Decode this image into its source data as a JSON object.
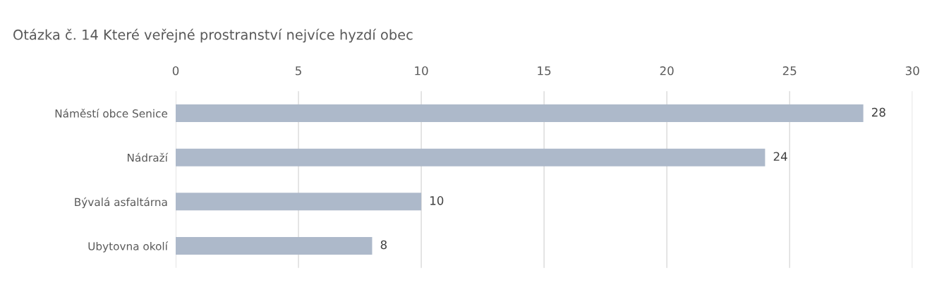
{
  "chart_data": {
    "type": "bar",
    "orientation": "horizontal",
    "title": "Otázka č. 14 Které veřejné prostranství nejvíce hyzdí obec",
    "categories": [
      "Náměstí obce Senice",
      "Nádraží",
      "Bývalá asfaltárna",
      "Ubytovna okolí"
    ],
    "values": [
      28,
      24,
      10,
      8
    ],
    "color": "#adb9ca",
    "xlim": [
      0,
      30
    ],
    "xticks": [
      0,
      5,
      10,
      15,
      20,
      25,
      30
    ],
    "grid": "x",
    "data_labels": true,
    "legend": false
  }
}
